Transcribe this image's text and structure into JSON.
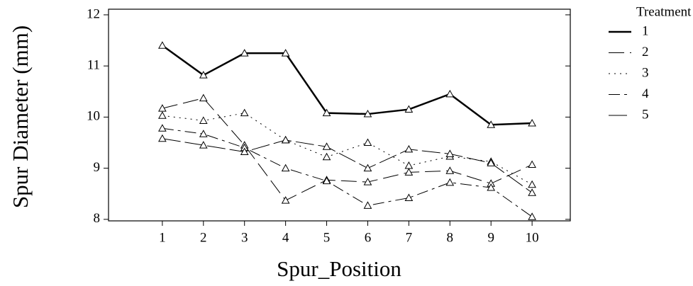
{
  "chart_data": {
    "type": "line",
    "xlabel": "Spur_Position",
    "ylabel": "Spur Diameter (mm)",
    "legend_title": "Treatment",
    "legend": "right",
    "marker": "triangle",
    "x": [
      1,
      2,
      3,
      4,
      5,
      6,
      7,
      8,
      9,
      10
    ],
    "xlim": [
      -0.31,
      10.93
    ],
    "xticks": [
      1,
      2,
      3,
      4,
      5,
      6,
      7,
      8,
      9,
      10
    ],
    "ylim": [
      7.97,
      12.11
    ],
    "yticks": [
      8,
      9,
      10,
      11,
      12
    ],
    "series": [
      {
        "name": "1",
        "color": "#000000",
        "width": 2.5,
        "dash": "none",
        "values": [
          11.4,
          10.82,
          11.25,
          11.25,
          10.08,
          10.06,
          10.15,
          10.45,
          9.85,
          9.88
        ]
      },
      {
        "name": "2",
        "color": "#000000",
        "width": 1,
        "dash": "22,8",
        "values": [
          10.17,
          10.37,
          9.45,
          8.37,
          8.77,
          8.73,
          8.92,
          8.95,
          8.7,
          9.07
        ]
      },
      {
        "name": "3",
        "color": "#000000",
        "width": 1,
        "dash": "2,6",
        "values": [
          10.03,
          9.93,
          10.08,
          9.55,
          9.22,
          9.5,
          9.05,
          9.23,
          9.13,
          8.68
        ]
      },
      {
        "name": "4",
        "color": "#000000",
        "width": 1,
        "dash": "16,6,4,6",
        "values": [
          9.78,
          9.67,
          9.4,
          9.0,
          8.75,
          8.27,
          8.42,
          8.72,
          8.62,
          8.05
        ]
      },
      {
        "name": "5",
        "color": "#000000",
        "width": 1,
        "dash": "26,6",
        "values": [
          9.58,
          9.45,
          9.32,
          9.55,
          9.42,
          9.0,
          9.37,
          9.28,
          9.1,
          8.52
        ]
      }
    ]
  }
}
